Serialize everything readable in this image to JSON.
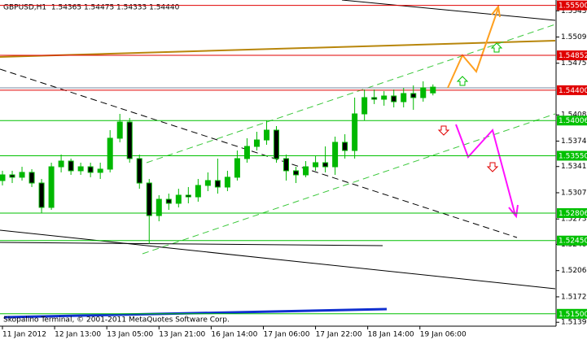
{
  "chart_data": {
    "type": "candlestick",
    "title": "GBPUSD,H1  1.54365 1.54475 1.54333 1.54440",
    "footer": "Skopalino Terminal, © 2001-2011 MetaQuotes Software Corp.",
    "x": [
      0,
      3,
      6,
      9,
      12,
      15,
      18,
      21,
      24,
      27,
      30,
      33,
      36,
      39,
      42,
      45,
      48,
      51,
      54,
      57,
      60,
      63,
      66,
      69,
      72,
      75,
      78,
      81,
      84,
      87,
      90,
      93,
      96,
      99,
      102,
      105,
      108,
      111,
      114,
      117,
      120,
      123,
      126,
      129,
      132
    ],
    "open": [
      1.53228,
      1.53302,
      1.53271,
      1.53334,
      1.53196,
      1.5288,
      1.53407,
      1.53481,
      1.53355,
      1.53407,
      1.53334,
      1.53376,
      1.53777,
      1.53987,
      1.53513,
      1.53196,
      1.52774,
      1.52985,
      1.52933,
      1.53038,
      1.53017,
      1.53165,
      1.53228,
      1.53144,
      1.53271,
      1.53513,
      1.53671,
      1.53755,
      1.53882,
      1.53513,
      1.53355,
      1.53302,
      1.53407,
      1.5346,
      1.53407,
      1.53724,
      1.53618,
      1.54093,
      1.54304,
      1.54283,
      1.54325,
      1.54251,
      1.54357,
      1.54304,
      1.54365
    ],
    "high": [
      1.53355,
      1.53355,
      1.53407,
      1.53376,
      1.53249,
      1.5346,
      1.53566,
      1.53513,
      1.5346,
      1.5346,
      1.5346,
      1.53882,
      1.54093,
      1.5404,
      1.53566,
      1.53249,
      1.53038,
      1.53059,
      1.53122,
      1.53144,
      1.53249,
      1.53334,
      1.53513,
      1.53355,
      1.53618,
      1.53777,
      1.53861,
      1.54009,
      1.53935,
      1.53566,
      1.53407,
      1.53481,
      1.53544,
      1.53671,
      1.53798,
      1.53829,
      1.54304,
      1.5441,
      1.5441,
      1.54388,
      1.5441,
      1.54431,
      1.54462,
      1.54515,
      1.54475
    ],
    "low": [
      1.53165,
      1.53196,
      1.53228,
      1.53144,
      1.52806,
      1.52848,
      1.53334,
      1.53302,
      1.53302,
      1.53271,
      1.53249,
      1.53334,
      1.53724,
      1.5346,
      1.53122,
      1.52405,
      1.527,
      1.52848,
      1.5288,
      1.52933,
      1.52954,
      1.53091,
      1.53059,
      1.53091,
      1.53228,
      1.5346,
      1.53618,
      1.53692,
      1.5346,
      1.53228,
      1.53196,
      1.53271,
      1.53355,
      1.53334,
      1.53302,
      1.53513,
      1.53513,
      1.54009,
      1.5422,
      1.54199,
      1.54177,
      1.54177,
      1.54146,
      1.54251,
      1.54333
    ],
    "close": [
      1.53302,
      1.53271,
      1.53334,
      1.53196,
      1.5288,
      1.53407,
      1.53481,
      1.53355,
      1.53407,
      1.53334,
      1.53376,
      1.53777,
      1.53987,
      1.53513,
      1.53196,
      1.52774,
      1.52985,
      1.52933,
      1.53038,
      1.53017,
      1.53165,
      1.53228,
      1.53144,
      1.53271,
      1.53513,
      1.53671,
      1.53755,
      1.53882,
      1.53513,
      1.53355,
      1.53302,
      1.53407,
      1.5346,
      1.53407,
      1.53724,
      1.53618,
      1.54093,
      1.54304,
      1.54283,
      1.54325,
      1.54251,
      1.54357,
      1.54304,
      1.54431,
      1.5444
    ],
    "up_color": "#00b800",
    "down_color": "#000000",
    "wick_color": "#00b800",
    "xlim": [
      -0.75,
      169.75
    ],
    "xticks": [
      {
        "value": 0,
        "label": "11 Jan 2012"
      },
      {
        "value": 16,
        "label": "12 Jan 13:00"
      },
      {
        "value": 32,
        "label": "13 Jan 05:00"
      },
      {
        "value": 48,
        "label": "13 Jan 21:00"
      },
      {
        "value": 64,
        "label": "16 Jan 14:00"
      },
      {
        "value": 80,
        "label": "17 Jan 06:00"
      },
      {
        "value": 96,
        "label": "17 Jan 22:00"
      },
      {
        "value": 112,
        "label": "18 Jan 14:00"
      },
      {
        "value": 128,
        "label": "19 Jan 06:00"
      }
    ],
    "ylim": [
      1.5135,
      1.5557
    ],
    "yticks": [
      {
        "value": 1.5543,
        "label": "1.55430"
      },
      {
        "value": 1.5509,
        "label": "1.55090"
      },
      {
        "value": 1.5475,
        "label": "1.54750"
      },
      {
        "value": 1.5408,
        "label": "1.54080"
      },
      {
        "value": 1.5374,
        "label": "1.53740"
      },
      {
        "value": 1.5341,
        "label": "1.53410"
      },
      {
        "value": 1.5307,
        "label": "1.53070"
      },
      {
        "value": 1.5273,
        "label": "1.52730"
      },
      {
        "value": 1.524,
        "label": "1.52400"
      },
      {
        "value": 1.5206,
        "label": "1.52060"
      },
      {
        "value": 1.5172,
        "label": "1.51720"
      },
      {
        "value": 1.5139,
        "label": "1.51390"
      }
    ],
    "levels": [
      {
        "value": 1.555,
        "label": "1.55500",
        "color": "#e00000"
      },
      {
        "value": 1.54852,
        "label": "1.54852",
        "color": "#e00000"
      },
      {
        "value": 1.544,
        "label": "1.54400",
        "color": "#e00000"
      },
      {
        "value": 1.54006,
        "label": "1.54006",
        "color": "#00c000"
      },
      {
        "value": 1.5355,
        "label": "1.53550",
        "color": "#00c000"
      },
      {
        "value": 1.52806,
        "label": "1.52806",
        "color": "#00c000"
      },
      {
        "value": 1.5245,
        "label": "1.52450",
        "color": "#00c000"
      },
      {
        "value": 1.515,
        "label": "1.51500",
        "color": "#00c000"
      }
    ]
  }
}
